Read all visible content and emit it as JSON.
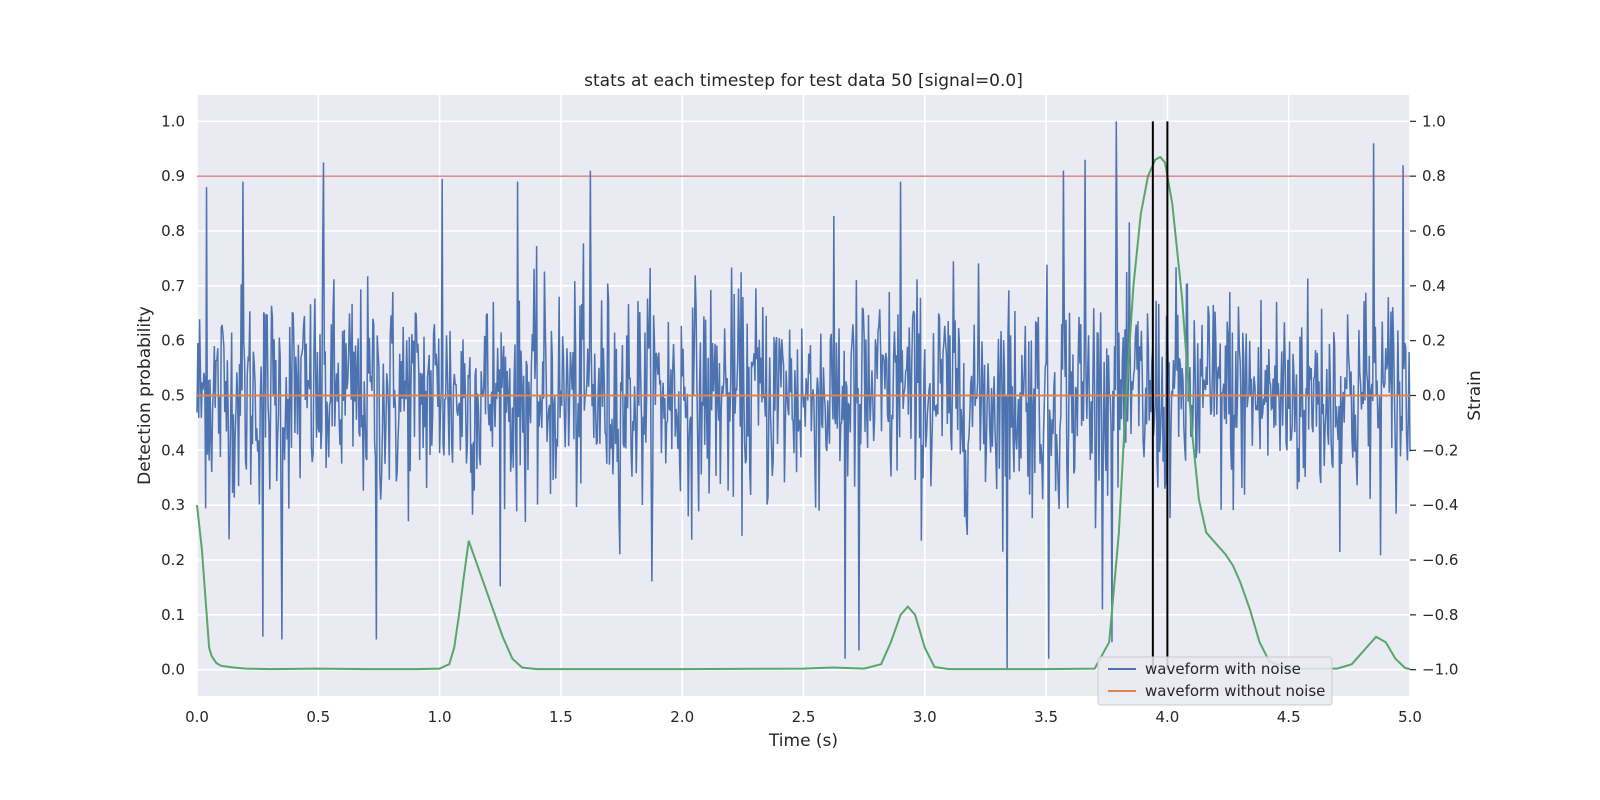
{
  "chart_data": {
    "type": "line",
    "title": "stats at each timestep for test data 50 [signal=0.0]",
    "xlabel": "Time (s)",
    "ylabel": "Detection probability",
    "y2label": "Strain",
    "xlim": [
      0.0,
      5.0
    ],
    "ylim": [
      -0.048,
      1.048
    ],
    "y2lim": [
      -1.096,
      1.096
    ],
    "x_ticks": [
      "0.0",
      "0.5",
      "1.0",
      "1.5",
      "2.0",
      "2.5",
      "3.0",
      "3.5",
      "4.0",
      "4.5",
      "5.0"
    ],
    "y_ticks": [
      "0.0",
      "0.1",
      "0.2",
      "0.3",
      "0.4",
      "0.5",
      "0.6",
      "0.7",
      "0.8",
      "0.9",
      "1.0"
    ],
    "y2_ticks": [
      "−1.0",
      "−0.8",
      "−0.6",
      "−0.4",
      "−0.2",
      "0.0",
      "0.2",
      "0.4",
      "0.6",
      "0.8",
      "1.0"
    ],
    "grid": true,
    "background": "#eaeaf2",
    "legend_position": "lower-right",
    "series": [
      {
        "name": "waveform with noise",
        "axis": "right",
        "color": "#4c72b0",
        "approx": "dense noise around 0 (strain), ~0.2 std, occasional spikes to about +1.0 and -1.0",
        "sample_count": 1400,
        "peaks": [
          {
            "x": 0.04,
            "y": 0.76
          },
          {
            "x": 0.19,
            "y": 0.78
          },
          {
            "x": 0.52,
            "y": 0.85
          },
          {
            "x": 1.01,
            "y": 0.79
          },
          {
            "x": 1.32,
            "y": 0.78
          },
          {
            "x": 1.62,
            "y": 0.82
          },
          {
            "x": 2.9,
            "y": 0.78
          },
          {
            "x": 3.57,
            "y": 0.82
          },
          {
            "x": 3.66,
            "y": 0.86
          },
          {
            "x": 3.79,
            "y": 1.0
          },
          {
            "x": 4.85,
            "y": 0.92
          },
          {
            "x": 4.97,
            "y": 0.84
          }
        ],
        "troughs": [
          {
            "x": 0.27,
            "y": -0.88
          },
          {
            "x": 0.35,
            "y": -0.89
          },
          {
            "x": 0.74,
            "y": -0.89
          },
          {
            "x": 2.67,
            "y": -0.96
          },
          {
            "x": 2.73,
            "y": -0.93
          },
          {
            "x": 3.34,
            "y": -1.0
          },
          {
            "x": 3.51,
            "y": -0.96
          },
          {
            "x": 3.77,
            "y": -0.9
          }
        ]
      },
      {
        "name": "waveform without noise",
        "axis": "right",
        "color": "#dd8452",
        "x": [
          0.0,
          5.0
        ],
        "y": [
          0.0,
          0.0
        ]
      },
      {
        "name": "",
        "axis": "left",
        "color": "#55a868",
        "x": [
          0.0,
          0.02,
          0.04,
          0.05,
          0.06,
          0.08,
          0.1,
          0.15,
          0.2,
          0.3,
          0.5,
          0.7,
          0.9,
          1.0,
          1.04,
          1.06,
          1.08,
          1.1,
          1.12,
          1.14,
          1.18,
          1.22,
          1.26,
          1.3,
          1.34,
          1.4,
          2.0,
          2.5,
          2.62,
          2.75,
          2.82,
          2.86,
          2.9,
          2.93,
          2.96,
          3.0,
          3.04,
          3.1,
          3.5,
          3.7,
          3.76,
          3.8,
          3.83,
          3.86,
          3.89,
          3.92,
          3.95,
          3.97,
          3.99,
          4.02,
          4.06,
          4.1,
          4.13,
          4.16,
          4.2,
          4.24,
          4.27,
          4.3,
          4.34,
          4.38,
          4.42,
          4.5,
          4.7,
          4.76,
          4.82,
          4.86,
          4.9,
          4.94,
          4.98,
          5.0
        ],
        "y": [
          0.3,
          0.22,
          0.1,
          0.04,
          0.025,
          0.012,
          0.007,
          0.004,
          0.002,
          0.001,
          0.002,
          0.001,
          0.001,
          0.002,
          0.01,
          0.04,
          0.1,
          0.17,
          0.235,
          0.21,
          0.16,
          0.11,
          0.06,
          0.02,
          0.004,
          0.001,
          0.001,
          0.002,
          0.004,
          0.002,
          0.01,
          0.05,
          0.1,
          0.115,
          0.1,
          0.04,
          0.005,
          0.001,
          0.001,
          0.002,
          0.05,
          0.25,
          0.5,
          0.7,
          0.83,
          0.9,
          0.93,
          0.935,
          0.925,
          0.85,
          0.68,
          0.44,
          0.31,
          0.25,
          0.23,
          0.21,
          0.19,
          0.16,
          0.11,
          0.05,
          0.015,
          0.002,
          0.002,
          0.01,
          0.04,
          0.06,
          0.05,
          0.02,
          0.003,
          0.001
        ]
      }
    ],
    "reference_lines": [
      {
        "orientation": "horizontal",
        "axis": "left",
        "y": 0.9,
        "color": "#c44e52"
      },
      {
        "orientation": "vertical",
        "x": 3.94,
        "y_from": 0.0,
        "y_to": 1.0,
        "color": "#000000"
      },
      {
        "orientation": "vertical",
        "x": 4.0,
        "y_from": 0.0,
        "y_to": 1.0,
        "color": "#000000"
      }
    ]
  }
}
